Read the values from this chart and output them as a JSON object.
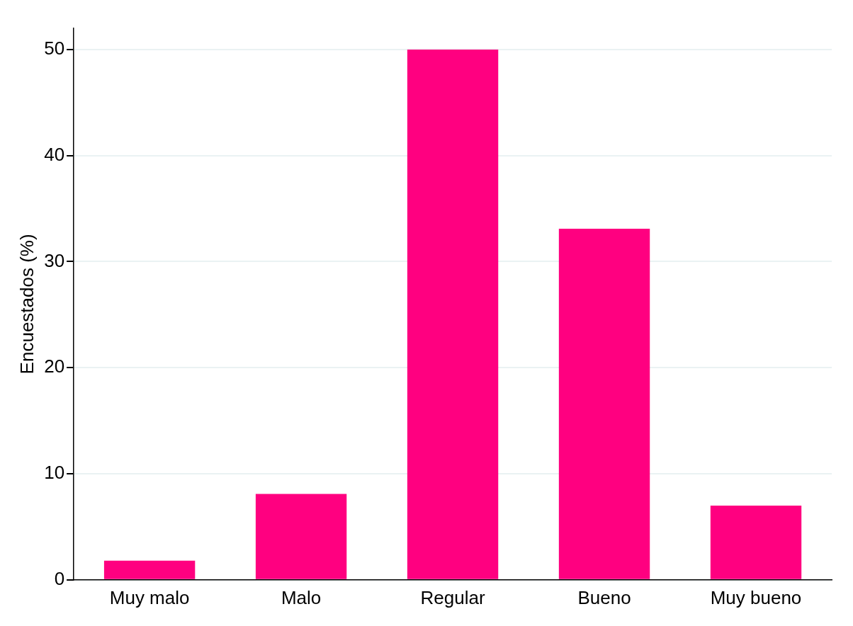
{
  "chart_data": {
    "type": "bar",
    "ylabel": "Encuestados (%)",
    "categories": [
      "Muy malo",
      "Malo",
      "Regular",
      "Bueno",
      "Muy bueno"
    ],
    "values": [
      1.8,
      8.1,
      50,
      33.1,
      7.0
    ],
    "color": "#ff0080",
    "ylim": [
      0,
      52
    ],
    "yticks": [
      0,
      10,
      20,
      30,
      40,
      50
    ],
    "grid": "y",
    "legend": false
  }
}
